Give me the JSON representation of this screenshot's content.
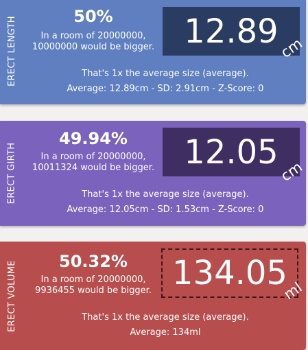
{
  "colors": {
    "length_bg": "#5f7fc0",
    "length_box": "#2b3c63",
    "girth_bg": "#7b62bd",
    "girth_box": "#3f2e62",
    "volume_bg": "#b84d4d",
    "volume_box_border": "#3a1a1a"
  },
  "length": {
    "side_label": "ERECT LENGTH",
    "percentile": "50%",
    "room_line1": "In a room of 20000000,",
    "room_line2": "10000000 would be bigger.",
    "value": "12.89",
    "unit": "cm",
    "summary": "That's 1x the average size (average).",
    "stats": "Average: 12.89cm - SD: 2.91cm - Z-Score: 0"
  },
  "girth": {
    "side_label": "ERECT GIRTH",
    "percentile": "49.94%",
    "room_line1": "In a room of 20000000,",
    "room_line2": "10011324 would be bigger.",
    "value": "12.05",
    "unit": "cm",
    "summary": "That's 1x the average size (average).",
    "stats": "Average: 12.05cm - SD: 1.53cm - Z-Score: 0"
  },
  "volume": {
    "side_label": "ERECT VOLUME",
    "percentile": "50.32%",
    "room_line1": "In a room of 20000000,",
    "room_line2": "9936455 would be bigger.",
    "value": "134.05",
    "unit": "ml",
    "summary": "That's 1x the average size (average).",
    "stats": "Average: 134ml"
  }
}
